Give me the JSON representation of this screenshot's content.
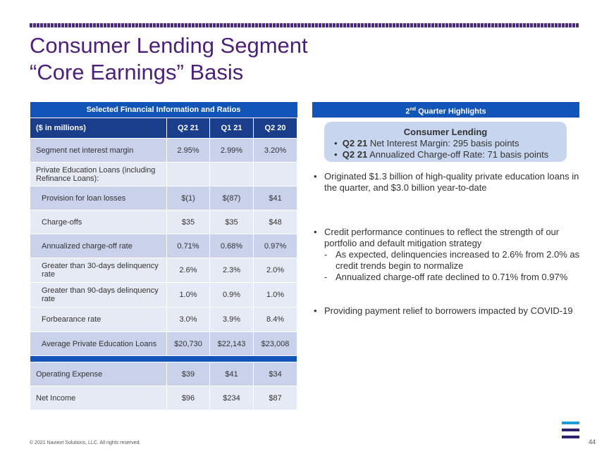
{
  "title_line1": "Consumer Lending Segment",
  "title_line2": "“Core Earnings” Basis",
  "table": {
    "caption": "Selected Financial Information and Ratios",
    "header": [
      "($ in millions)",
      "Q2 21",
      "Q1 21",
      "Q2 20"
    ],
    "rows": [
      {
        "label": "Segment net interest margin",
        "values": [
          "2.95%",
          "2.99%",
          "3.20%"
        ]
      },
      {
        "label": "Private Education Loans (including Refinance Loans):",
        "values": [
          "",
          "",
          ""
        ]
      },
      {
        "label": "Provision for loan losses",
        "values": [
          "$(1)",
          "$(87)",
          "$41"
        ]
      },
      {
        "label": "Charge-offs",
        "values": [
          "$35",
          "$35",
          "$48"
        ]
      },
      {
        "label": "Annualized charge-off rate",
        "values": [
          "0.71%",
          "0.68%",
          "0.97%"
        ]
      },
      {
        "label": "Greater than 30-days delinquency rate",
        "values": [
          "2.6%",
          "2.3%",
          "2.0%"
        ]
      },
      {
        "label": "Greater than 90-days delinquency rate",
        "values": [
          "1.0%",
          "0.9%",
          "1.0%"
        ]
      },
      {
        "label": "Forbearance rate",
        "values": [
          "3.0%",
          "3.9%",
          "8.4%"
        ]
      },
      {
        "label": "Average Private Education Loans",
        "values": [
          "$20,730",
          "$22,143",
          "$23,008"
        ]
      }
    ],
    "rows2": [
      {
        "label": "Operating Expense",
        "values": [
          "$39",
          "$41",
          "$34"
        ]
      },
      {
        "label": "Net Income",
        "values": [
          "$96",
          "$234",
          "$87"
        ]
      }
    ]
  },
  "highlights": {
    "header_prefix": "2",
    "header_sup": "nd",
    "header_suffix": " Quarter Highlights",
    "box_title": "Consumer Lending",
    "box_items": [
      {
        "bold": "Q2 21",
        "text": " Net Interest Margin: 295 basis points"
      },
      {
        "bold": "Q2 21",
        "text": " Annualized Charge-off Rate: 71 basis points"
      }
    ],
    "bullet1": "Originated $1.3 billion of high-quality private education loans in the quarter, and $3.0 billion year-to-date",
    "bullet2": "Credit performance continues to reflect the strength of our portfolio and default mitigation strategy",
    "bullet2_subs": [
      "As expected, delinquencies increased to 2.6% from 2.0% as credit trends begin to normalize",
      "Annualized charge-off rate declined to 0.71% from 0.97%"
    ],
    "bullet3": "Providing payment relief to borrowers impacted by COVID-19"
  },
  "footer": "© 2021 Navient Solutions, LLC. All rights reserved.",
  "page_number": "44",
  "colors": {
    "title": "#4b1f7a",
    "blue": "#1155b8",
    "navy": "#1b3e8c",
    "logo_blue": "#1a9ed8",
    "logo_navy": "#2a2470"
  }
}
